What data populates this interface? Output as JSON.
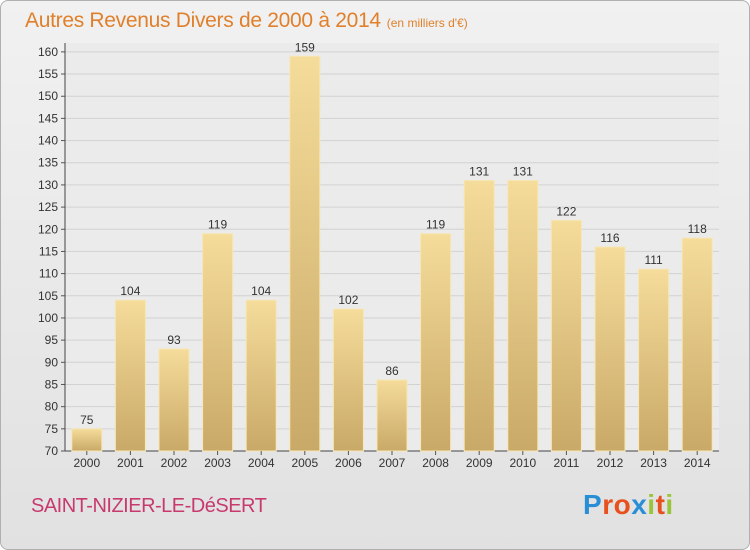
{
  "header": {
    "title": "Autres Revenus Divers de 2000 à 2014",
    "subtitle": "(en milliers d'€)"
  },
  "footer": {
    "commune": "SAINT-NIZIER-LE-DéSERT",
    "logo": {
      "text": "Proxiti",
      "letter_colors": [
        "#2a8ed6",
        "#e8501e",
        "#e8501e",
        "#2a8ed6",
        "#9ac43a",
        "#e8501e",
        "#9ac43a"
      ]
    }
  },
  "colors": {
    "title": "#e0802c",
    "commune": "#c83a6e",
    "bar_light": "#f5dc9a",
    "bar_dark": "#c9a968",
    "grid": "#d2d2d2",
    "axis_text": "#333333"
  },
  "chart_data": {
    "type": "bar",
    "title": "Autres Revenus Divers de 2000 à 2014",
    "subtitle": "(en milliers d'€)",
    "xlabel": "",
    "ylabel": "",
    "categories": [
      "2000",
      "2001",
      "2002",
      "2003",
      "2004",
      "2005",
      "2006",
      "2007",
      "2008",
      "2009",
      "2010",
      "2011",
      "2012",
      "2013",
      "2014"
    ],
    "values": [
      75,
      104,
      93,
      119,
      104,
      159,
      102,
      86,
      119,
      131,
      131,
      122,
      116,
      111,
      118
    ],
    "ylim": [
      70,
      162
    ],
    "yticks": [
      70,
      75,
      80,
      85,
      90,
      95,
      100,
      105,
      110,
      115,
      120,
      125,
      130,
      135,
      140,
      145,
      150,
      155,
      160
    ],
    "grid": true,
    "data_labels": true
  }
}
